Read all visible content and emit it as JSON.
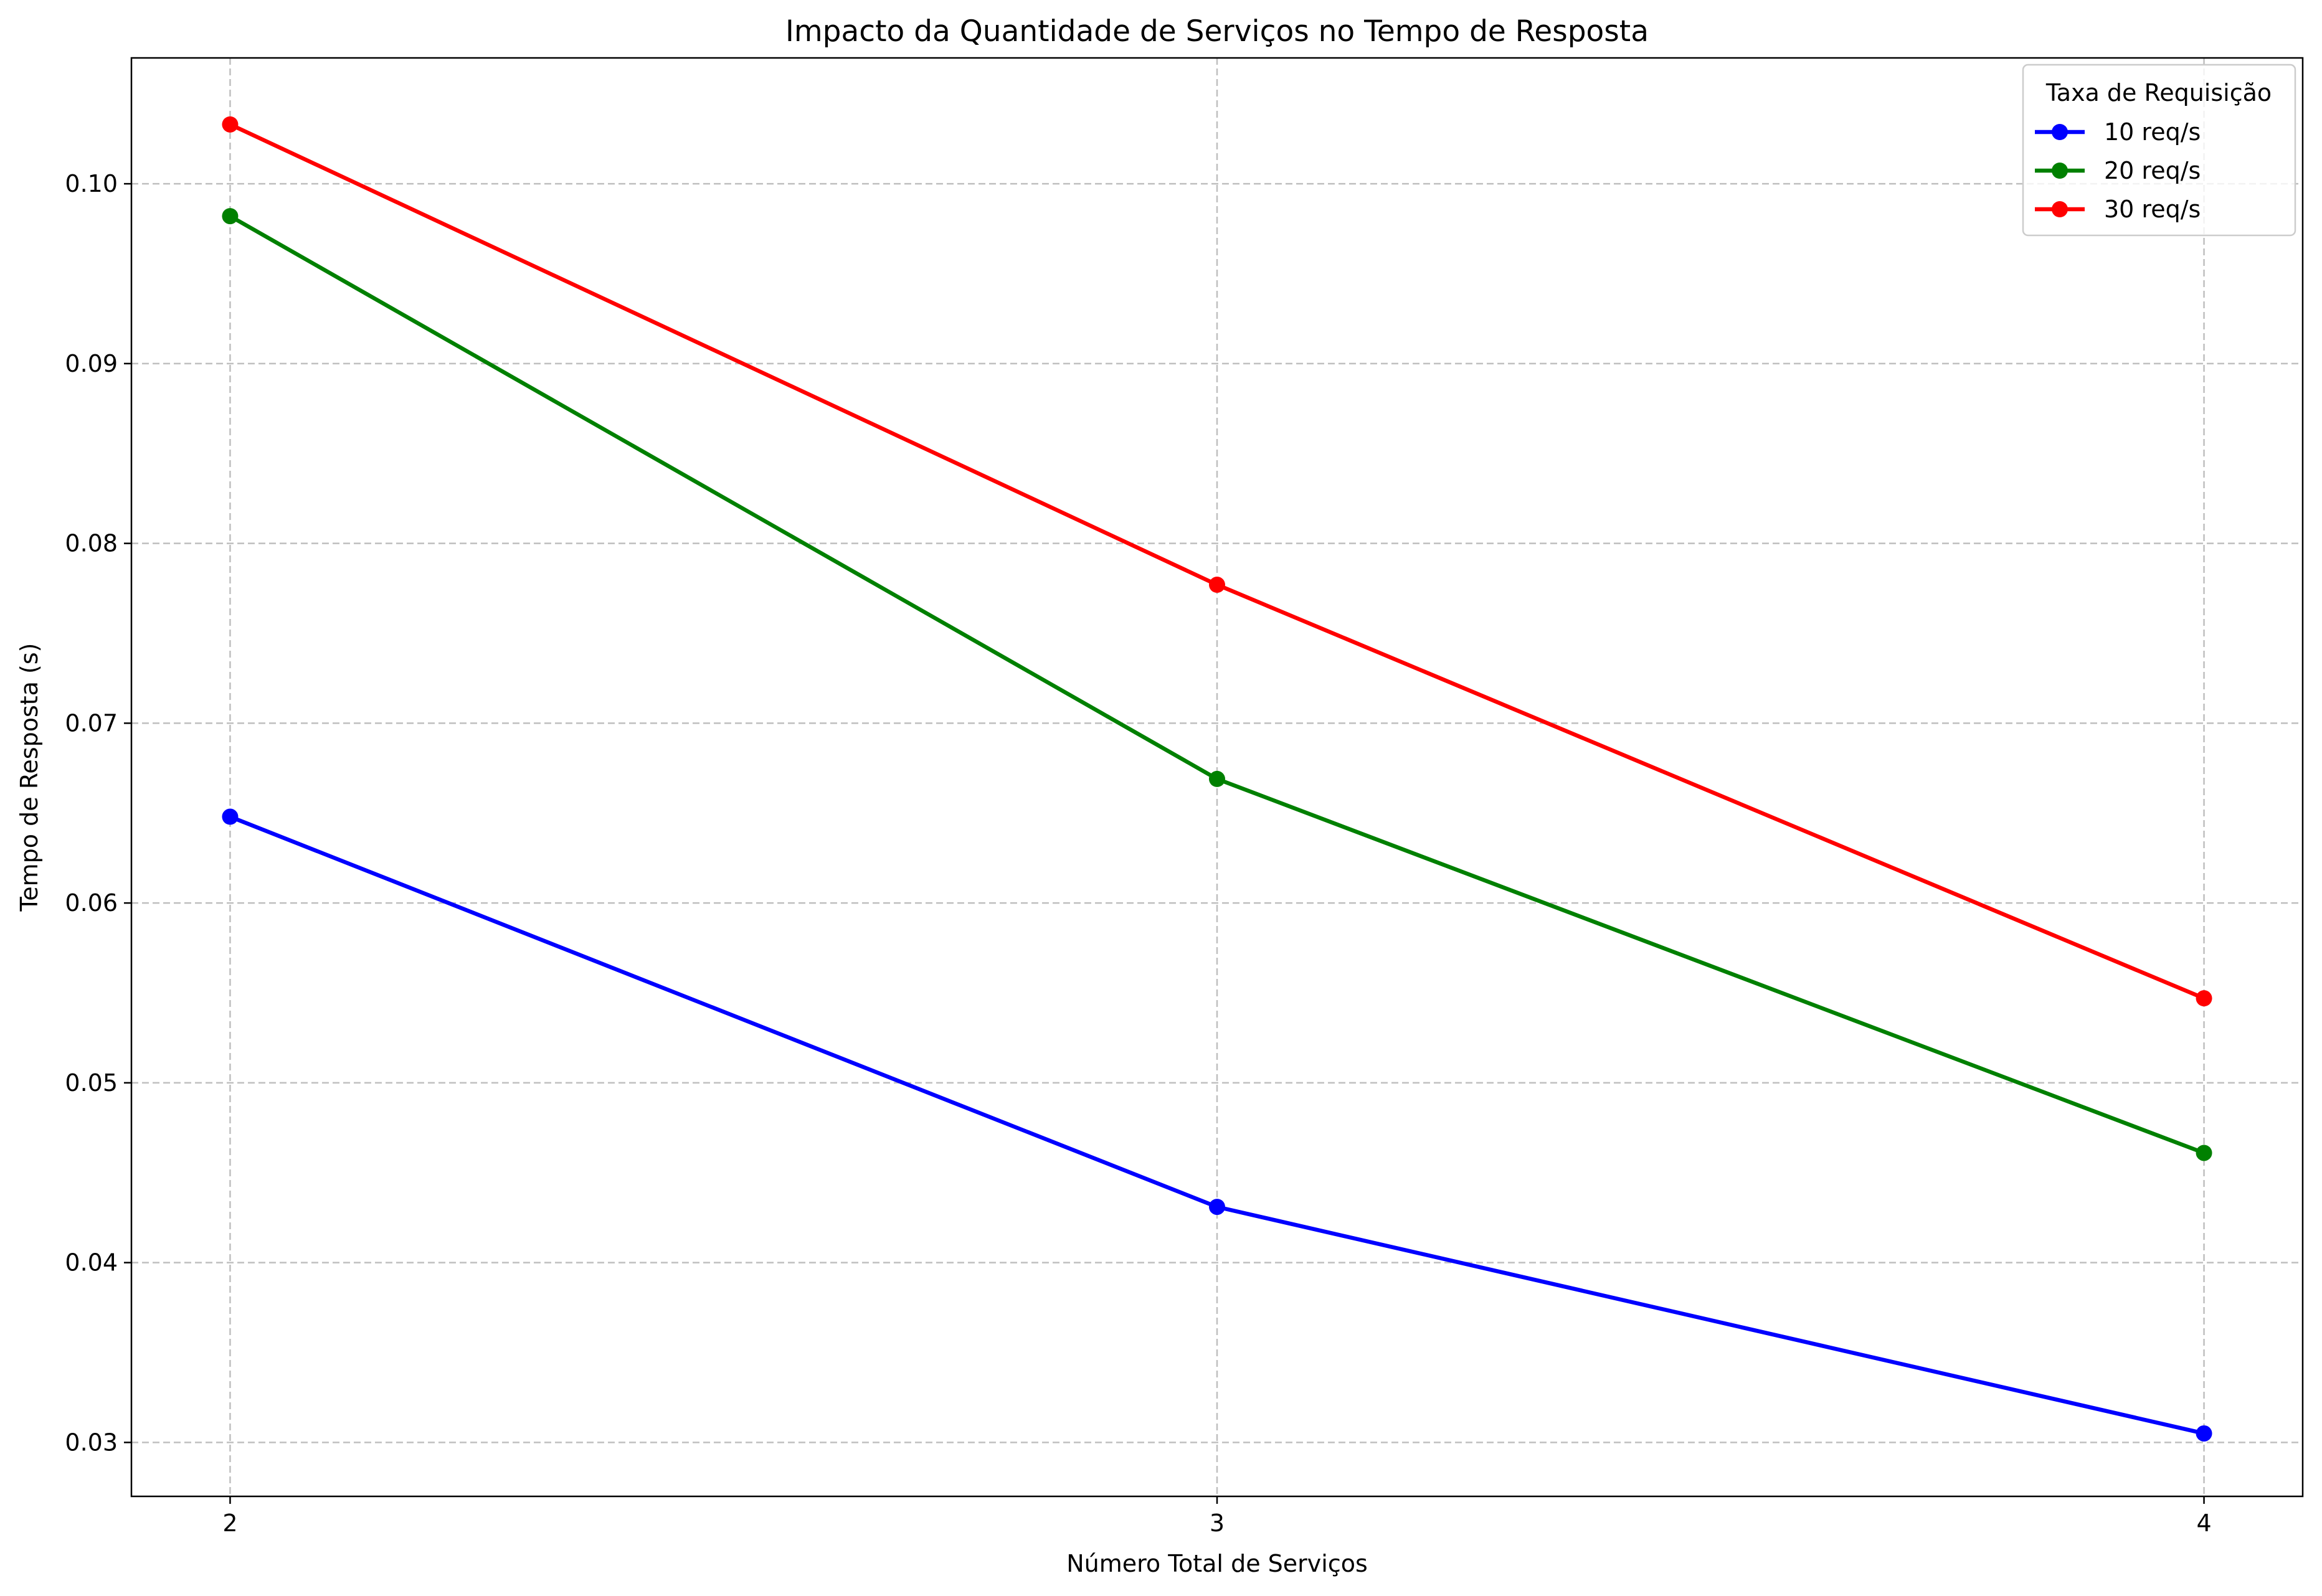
{
  "chart_data": {
    "type": "line",
    "title": "Impacto da Quantidade de Serviços no Tempo de Resposta",
    "xlabel": "Número Total de Serviços",
    "ylabel": "Tempo de Resposta (s)",
    "x": [
      2,
      3,
      4
    ],
    "x_tick_labels": [
      "2",
      "3",
      "4"
    ],
    "y_ticks": [
      0.03,
      0.04,
      0.05,
      0.06,
      0.07,
      0.08,
      0.09,
      0.1
    ],
    "y_tick_labels": [
      "0.03",
      "0.04",
      "0.05",
      "0.06",
      "0.07",
      "0.08",
      "0.09",
      "0.10"
    ],
    "xlim": [
      1.9,
      4.1
    ],
    "ylim": [
      0.027,
      0.107
    ],
    "grid": true,
    "legend": {
      "title": "Taxa de Requisição",
      "placement": "top-right"
    },
    "series": [
      {
        "name": "10 req/s",
        "color": "#0000ff",
        "marker": "circle",
        "values": [
          0.0648,
          0.0431,
          0.0305
        ]
      },
      {
        "name": "20 req/s",
        "color": "#008000",
        "marker": "circle",
        "values": [
          0.0982,
          0.0669,
          0.0461
        ]
      },
      {
        "name": "30 req/s",
        "color": "#ff0000",
        "marker": "circle",
        "values": [
          0.1033,
          0.0777,
          0.0547
        ]
      }
    ]
  }
}
